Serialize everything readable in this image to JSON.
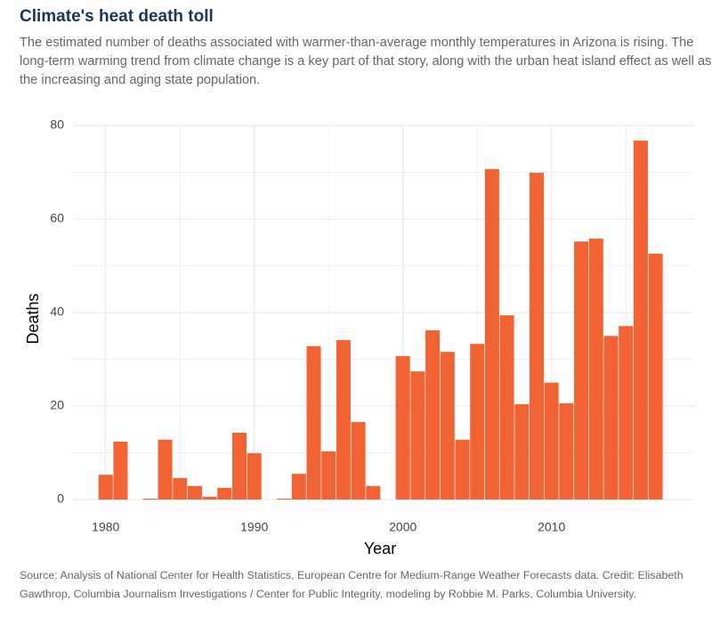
{
  "chart_data": {
    "type": "bar",
    "title": "Climate's heat death toll",
    "subtitle": "The estimated number of deaths associated with warmer-than-average monthly temperatures in Arizona is rising. The long-term warming trend from climate change is a key part of that story, along with the urban heat island effect as well as the increasing and aging state population.",
    "source": "Source: Analysis of National Center for Health Statistics, European Centre for Medium-Range Weather Forecasts data. Credit: Elisabeth Gawthrop, Columbia Journalism Investigations / Center for Public Integrity, modeling by Robbie M. Parks, Columbia University.",
    "x_label": "Year",
    "y_label": "Deaths",
    "x": [
      1980,
      1981,
      1982,
      1983,
      1984,
      1985,
      1986,
      1987,
      1988,
      1989,
      1990,
      1991,
      1992,
      1993,
      1994,
      1995,
      1996,
      1997,
      1998,
      1999,
      2000,
      2001,
      2002,
      2003,
      2004,
      2005,
      2006,
      2007,
      2008,
      2009,
      2010,
      2011,
      2012,
      2013,
      2014,
      2015,
      2016,
      2017
    ],
    "values": [
      5.3,
      12.4,
      0,
      0.2,
      12.8,
      4.6,
      2.9,
      0.6,
      2.5,
      14.3,
      9.9,
      0,
      0.2,
      5.5,
      32.8,
      10.3,
      34.1,
      16.6,
      2.9,
      0,
      30.7,
      27.4,
      36.2,
      31.6,
      12.8,
      33.3,
      70.7,
      39.4,
      20.4,
      69.9,
      25.0,
      20.6,
      55.2,
      55.8,
      35.0,
      37.1,
      76.8,
      52.6
    ],
    "color": "#f26334",
    "xlim": [
      1977.8,
      2019.6
    ],
    "xticks": [
      1980,
      1990,
      2000,
      2010
    ],
    "ylim": [
      0,
      80
    ],
    "yticks": [
      0,
      20,
      40,
      60,
      80
    ],
    "grid": true
  }
}
